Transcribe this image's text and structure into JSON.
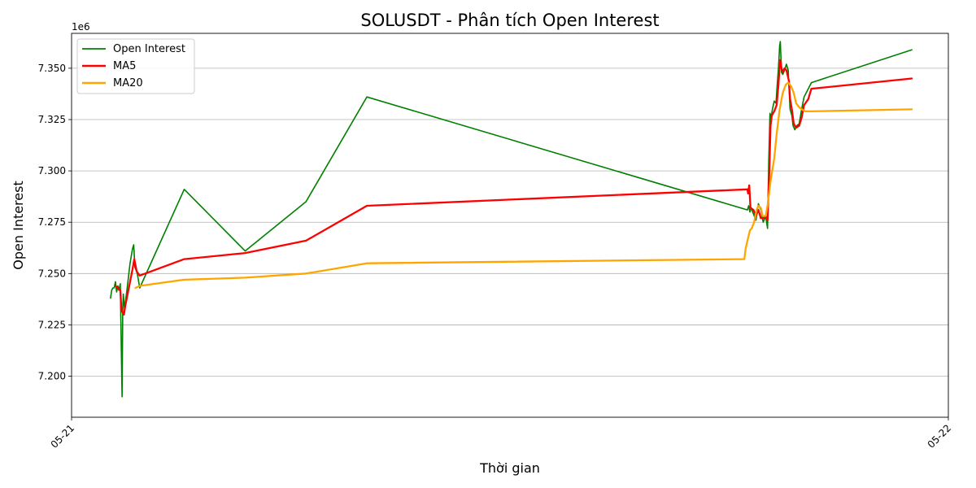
{
  "chart_data": {
    "type": "line",
    "title": "SOLUSDT - Phân tích Open Interest",
    "xlabel": "Thời gian",
    "ylabel": "Open Interest",
    "y_scale_label": "1e6",
    "xlim": [
      "05-21 00:00",
      "05-22 00:00"
    ],
    "ylim": [
      7180000,
      7367000
    ],
    "x_ticks": [
      {
        "value": "05-21 00:00",
        "label": "05-21"
      },
      {
        "value": "05-22 00:00",
        "label": "05-22"
      }
    ],
    "y_ticks": [
      {
        "value": 7200000,
        "label": "7.200"
      },
      {
        "value": 7225000,
        "label": "7.225"
      },
      {
        "value": 7250000,
        "label": "7.250"
      },
      {
        "value": 7275000,
        "label": "7.275"
      },
      {
        "value": 7300000,
        "label": "7.300"
      },
      {
        "value": 7325000,
        "label": "7.325"
      },
      {
        "value": 7350000,
        "label": "7.350"
      }
    ],
    "grid": "horizontal",
    "legend_position": "top-left",
    "series": [
      {
        "name": "Open Interest",
        "color": "#008000",
        "points": [
          [
            "05-21 01:04",
            7238000
          ],
          [
            "05-21 01:06",
            7242000
          ],
          [
            "05-21 01:08",
            7243000
          ],
          [
            "05-21 01:10",
            7243000
          ],
          [
            "05-21 01:12",
            7246000
          ],
          [
            "05-21 01:14",
            7241000
          ],
          [
            "05-21 01:16",
            7244000
          ],
          [
            "05-21 01:18",
            7242000
          ],
          [
            "05-21 01:20",
            7245000
          ],
          [
            "05-21 01:23",
            7190000
          ],
          [
            "05-21 01:24",
            7232000
          ],
          [
            "05-21 01:25",
            7240000
          ],
          [
            "05-21 01:27",
            7233000
          ],
          [
            "05-21 01:31",
            7242000
          ],
          [
            "05-21 01:36",
            7255000
          ],
          [
            "05-21 01:40",
            7262000
          ],
          [
            "05-21 01:42",
            7264000
          ],
          [
            "05-21 01:44",
            7253000
          ],
          [
            "05-21 01:48",
            7250000
          ],
          [
            "05-21 01:52",
            7243000
          ],
          [
            "05-21 03:05",
            7291000
          ],
          [
            "05-21 04:45",
            7261000
          ],
          [
            "05-21 06:25",
            7285000
          ],
          [
            "05-21 08:05",
            7336000
          ],
          [
            "05-21 18:30",
            7281000
          ],
          [
            "05-21 18:32",
            7283000
          ],
          [
            "05-21 18:34",
            7280000
          ],
          [
            "05-21 18:36",
            7282000
          ],
          [
            "05-21 18:40",
            7279000
          ],
          [
            "05-21 18:44",
            7276000
          ],
          [
            "05-21 18:48",
            7284000
          ],
          [
            "05-21 18:52",
            7281000
          ],
          [
            "05-21 18:56",
            7275000
          ],
          [
            "05-21 19:00",
            7278000
          ],
          [
            "05-21 19:03",
            7272000
          ],
          [
            "05-21 19:05",
            7305000
          ],
          [
            "05-21 19:07",
            7328000
          ],
          [
            "05-21 19:09",
            7326000
          ],
          [
            "05-21 19:11",
            7330000
          ],
          [
            "05-21 19:14",
            7334000
          ],
          [
            "05-21 19:17",
            7333000
          ],
          [
            "05-21 19:19",
            7342000
          ],
          [
            "05-21 19:21",
            7350000
          ],
          [
            "05-21 19:23",
            7361000
          ],
          [
            "05-21 19:24",
            7363000
          ],
          [
            "05-21 19:26",
            7348000
          ],
          [
            "05-21 19:28",
            7347000
          ],
          [
            "05-21 19:31",
            7349000
          ],
          [
            "05-21 19:34",
            7352000
          ],
          [
            "05-21 19:37",
            7349000
          ],
          [
            "05-21 19:40",
            7330000
          ],
          [
            "05-21 19:43",
            7327000
          ],
          [
            "05-21 19:45",
            7322000
          ],
          [
            "05-21 19:48",
            7320000
          ],
          [
            "05-21 19:51",
            7322000
          ],
          [
            "05-21 19:55",
            7323000
          ],
          [
            "05-21 19:59",
            7330000
          ],
          [
            "05-21 20:03",
            7336000
          ],
          [
            "05-21 20:10",
            7340000
          ],
          [
            "05-21 20:15",
            7343000
          ],
          [
            "05-21 23:00",
            7359000
          ]
        ]
      },
      {
        "name": "MA5",
        "color": "#ff0000",
        "points": [
          [
            "05-21 01:12",
            7244000
          ],
          [
            "05-21 01:16",
            7243000
          ],
          [
            "05-21 01:18",
            7242000
          ],
          [
            "05-21 01:20",
            7242000
          ],
          [
            "05-21 01:22",
            7232000
          ],
          [
            "05-21 01:24",
            7231000
          ],
          [
            "05-21 01:26",
            7230000
          ],
          [
            "05-21 01:28",
            7234000
          ],
          [
            "05-21 01:34",
            7243000
          ],
          [
            "05-21 01:40",
            7252000
          ],
          [
            "05-21 01:43",
            7257000
          ],
          [
            "05-21 01:47",
            7251000
          ],
          [
            "05-21 01:52",
            7249000
          ],
          [
            "05-21 03:05",
            7257000
          ],
          [
            "05-21 04:45",
            7260000
          ],
          [
            "05-21 06:25",
            7266000
          ],
          [
            "05-21 08:05",
            7283000
          ],
          [
            "05-21 18:30",
            7291000
          ],
          [
            "05-21 18:31",
            7289000
          ],
          [
            "05-21 18:33",
            7293000
          ],
          [
            "05-21 18:35",
            7282000
          ],
          [
            "05-21 18:40",
            7281000
          ],
          [
            "05-21 18:44",
            7278000
          ],
          [
            "05-21 18:48",
            7281000
          ],
          [
            "05-21 18:52",
            7277000
          ],
          [
            "05-21 18:56",
            7277000
          ],
          [
            "05-21 19:00",
            7278000
          ],
          [
            "05-21 19:03",
            7276000
          ],
          [
            "05-21 19:06",
            7300000
          ],
          [
            "05-21 19:08",
            7322000
          ],
          [
            "05-21 19:10",
            7327000
          ],
          [
            "05-21 19:14",
            7329000
          ],
          [
            "05-21 19:18",
            7332000
          ],
          [
            "05-21 19:21",
            7342000
          ],
          [
            "05-21 19:23",
            7351000
          ],
          [
            "05-21 19:24",
            7354000
          ],
          [
            "05-21 19:26",
            7350000
          ],
          [
            "05-21 19:28",
            7348000
          ],
          [
            "05-21 19:31",
            7350000
          ],
          [
            "05-21 19:34",
            7349000
          ],
          [
            "05-21 19:38",
            7344000
          ],
          [
            "05-21 19:40",
            7335000
          ],
          [
            "05-21 19:43",
            7330000
          ],
          [
            "05-21 19:46",
            7323000
          ],
          [
            "05-21 19:50",
            7321000
          ],
          [
            "05-21 19:55",
            7322000
          ],
          [
            "05-21 19:59",
            7326000
          ],
          [
            "05-21 20:03",
            7332000
          ],
          [
            "05-21 20:10",
            7335000
          ],
          [
            "05-21 20:12",
            7337000
          ],
          [
            "05-21 20:15",
            7340000
          ],
          [
            "05-21 23:00",
            7345000
          ]
        ]
      },
      {
        "name": "MA20",
        "color": "#ffa500",
        "points": [
          [
            "05-21 01:45",
            7243000
          ],
          [
            "05-21 01:52",
            7244000
          ],
          [
            "05-21 03:05",
            7247000
          ],
          [
            "05-21 04:45",
            7248000
          ],
          [
            "05-21 06:25",
            7250000
          ],
          [
            "05-21 08:05",
            7255000
          ],
          [
            "05-21 18:25",
            7257000
          ],
          [
            "05-21 18:27",
            7262000
          ],
          [
            "05-21 18:30",
            7266000
          ],
          [
            "05-21 18:34",
            7271000
          ],
          [
            "05-21 18:37",
            7272000
          ],
          [
            "05-21 18:41",
            7275000
          ],
          [
            "05-21 18:45",
            7281000
          ],
          [
            "05-21 18:48",
            7283000
          ],
          [
            "05-21 18:52",
            7282000
          ],
          [
            "05-21 18:55",
            7278000
          ],
          [
            "05-21 19:00",
            7278000
          ],
          [
            "05-21 19:03",
            7283000
          ],
          [
            "05-21 19:08",
            7295000
          ],
          [
            "05-21 19:14",
            7306000
          ],
          [
            "05-21 19:18",
            7318000
          ],
          [
            "05-21 19:23",
            7330000
          ],
          [
            "05-21 19:28",
            7338000
          ],
          [
            "05-21 19:33",
            7342000
          ],
          [
            "05-21 19:37",
            7343000
          ],
          [
            "05-21 19:42",
            7341000
          ],
          [
            "05-21 19:46",
            7338000
          ],
          [
            "05-21 19:50",
            7333000
          ],
          [
            "05-21 19:55",
            7331000
          ],
          [
            "05-21 19:59",
            7330000
          ],
          [
            "05-21 20:05",
            7329000
          ],
          [
            "05-21 20:15",
            7329000
          ],
          [
            "05-21 23:00",
            7330000
          ]
        ]
      }
    ]
  }
}
